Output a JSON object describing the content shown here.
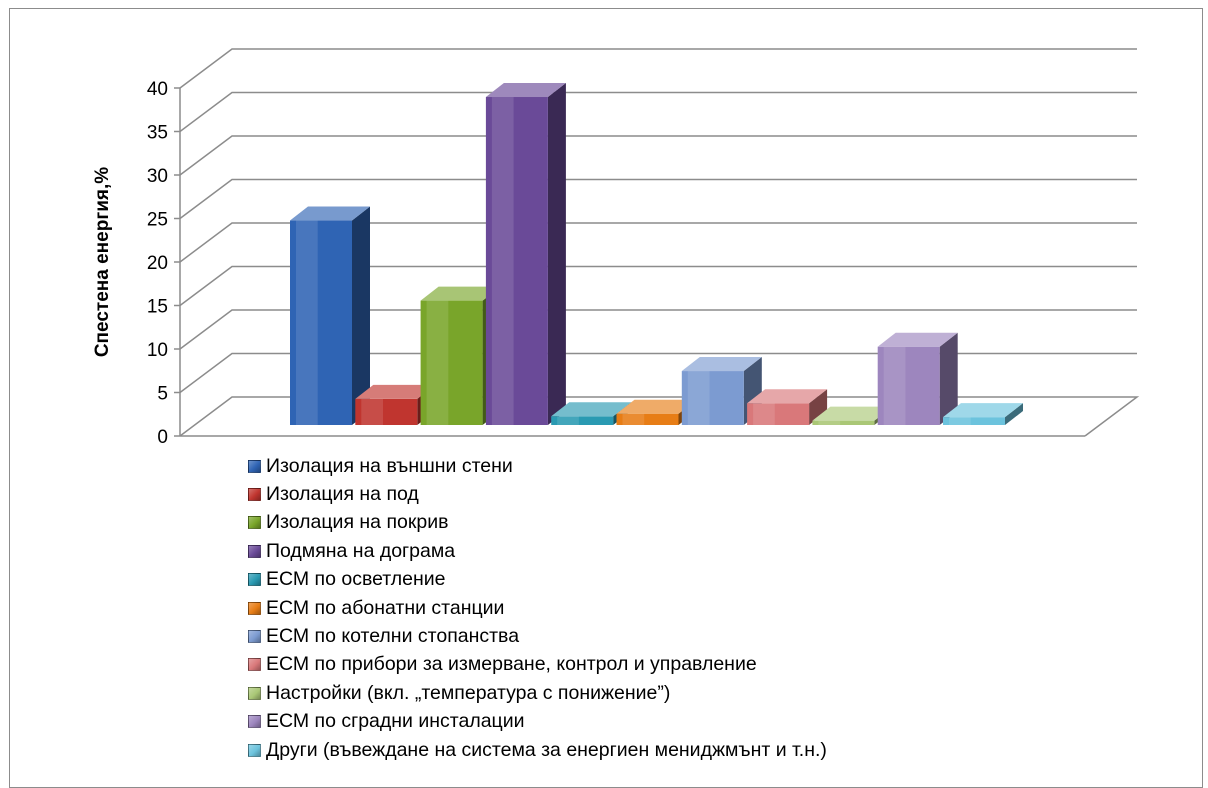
{
  "chart_data": {
    "type": "bar",
    "title": "",
    "xlabel": "",
    "ylabel": "Спестена енергия,%",
    "ylim": [
      0,
      40
    ],
    "yticks": [
      0,
      5,
      10,
      15,
      20,
      25,
      30,
      35,
      40
    ],
    "grid": true,
    "legend_position": "bottom",
    "style": "3d-column",
    "series": [
      {
        "name": "Изолация на външни стени",
        "value": 23.5,
        "color": "#2f64b4"
      },
      {
        "name": "Изолация на под",
        "value": 3.0,
        "color": "#c0352f"
      },
      {
        "name": "Изолация на покрив",
        "value": 14.3,
        "color": "#79a52a"
      },
      {
        "name": "Подмяна на дограма",
        "value": 37.7,
        "color": "#6a4a98"
      },
      {
        "name": "ЕСМ по осветление",
        "value": 1.0,
        "color": "#2a9ab2"
      },
      {
        "name": "ЕСМ по абонатни станции",
        "value": 1.3,
        "color": "#e77d16"
      },
      {
        "name": "ЕСМ по котелни стопанства",
        "value": 6.2,
        "color": "#7c9bd1"
      },
      {
        "name": "ЕСМ по прибори за измерване, контрол и управление",
        "value": 2.5,
        "color": "#d9787a"
      },
      {
        "name": "Настройки (вкл. „температура с понижение”)",
        "value": 0.5,
        "color": "#aac776"
      },
      {
        "name": "ЕСМ по сградни инсталации",
        "value": 9.0,
        "color": "#9d86be"
      },
      {
        "name": "Други (въвеждане на система за енергиен мениджмънт и т.н.)",
        "value": 0.9,
        "color": "#6cc3dd"
      }
    ]
  }
}
